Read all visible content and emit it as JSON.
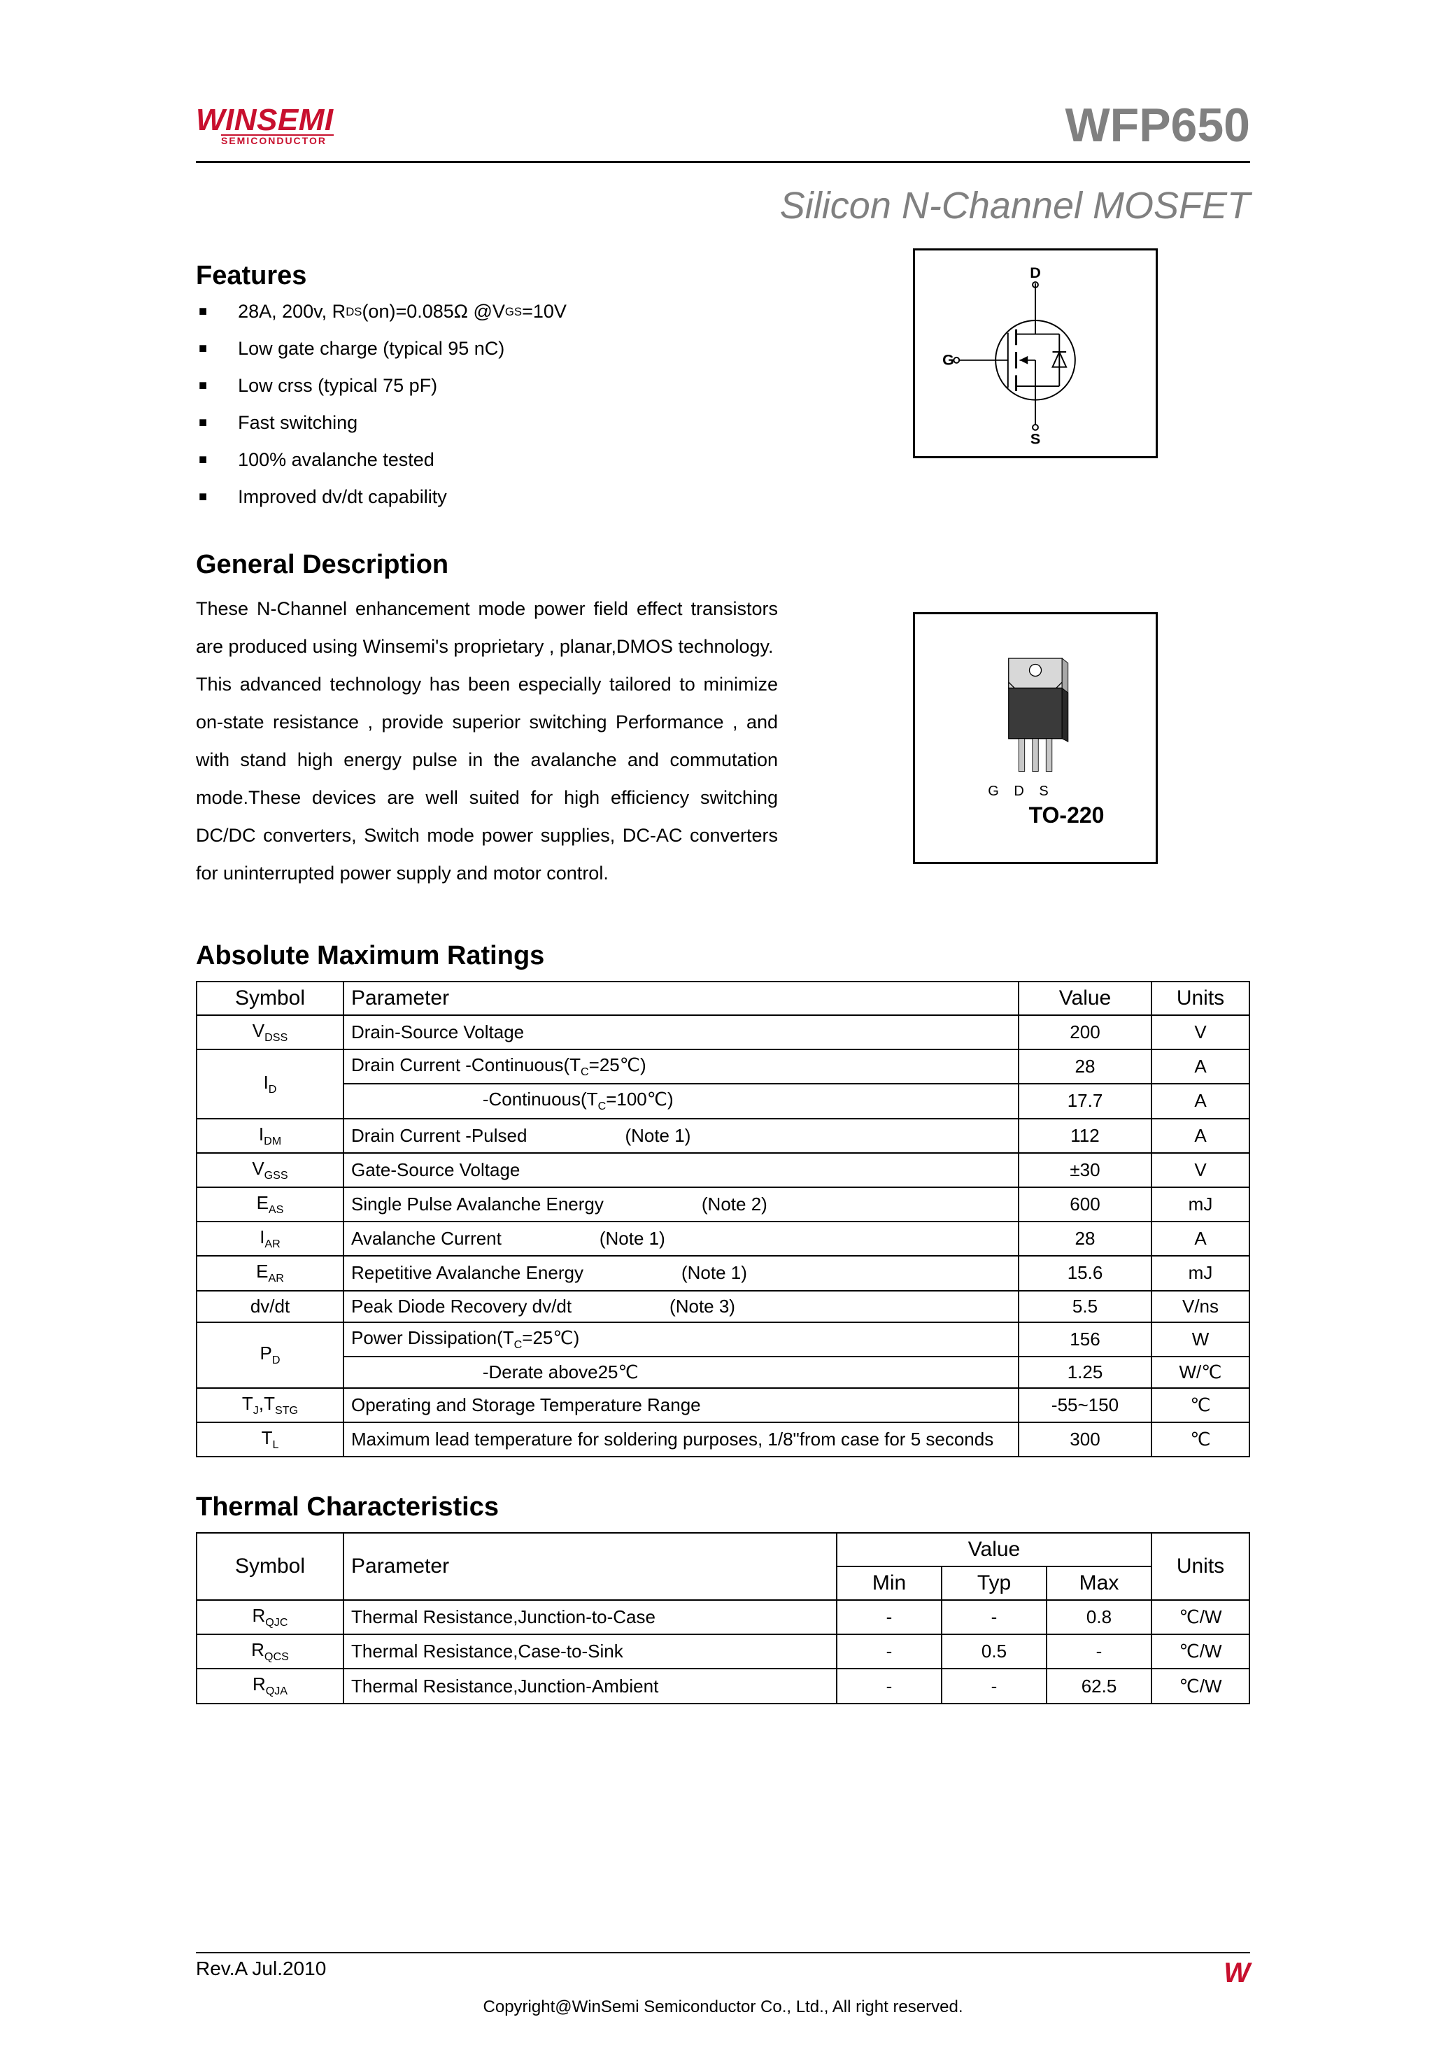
{
  "logo": {
    "main": "WINSEMI",
    "sub": "SEMICONDUCTOR"
  },
  "part_number": "WFP650",
  "subtitle": "Silicon N-Channel MOSFET",
  "features": {
    "heading": "Features",
    "items": [
      "28A, 200v, R<sub>DS</sub>(on)=0.085Ω @V<sub>GS</sub>=10V",
      "Low gate charge (typical 95 nC)",
      "Low crss (typical 75 pF)",
      "Fast switching",
      "100% avalanche tested",
      "Improved dv/dt capability"
    ]
  },
  "description": {
    "heading": "General Description",
    "body": "These N-Channel enhancement   mode power field effect transistors are produced   using   Winsemi's   proprietary , planar,DMOS technology.\nThis   advanced technology has been especially tailored to minimize on-state resistance ,   provide superior switching Performance , and   with stand   high energy pulse in   the avalanche and commutation mode.These devices are well suited for high efficiency   switching   DC/DC   converters, Switch mode   power supplies,   DC-AC   converters   for uninterrupted power supply and motor control."
  },
  "schematic": {
    "pins": {
      "d": "D",
      "g": "G",
      "s": "S"
    }
  },
  "package": {
    "pins_label": "G D S",
    "name": "TO-220"
  },
  "amr": {
    "heading": "Absolute Maximum Ratings",
    "headers": {
      "symbol": "Symbol",
      "parameter": "Parameter",
      "value": "Value",
      "units": "Units"
    },
    "rows": [
      {
        "symbol": "V<sub>DSS</sub>",
        "parameter": "Drain-Source Voltage",
        "note": "",
        "value": "200",
        "units": "V"
      },
      {
        "symbol": "I<sub>D</sub>",
        "parameter": "Drain Current -Continuous(T<sub>C</sub>=25℃)",
        "note": "",
        "value": "28",
        "units": "A",
        "rowspan_symbol": 2
      },
      {
        "symbol": "",
        "parameter": "                          -Continuous(T<sub>C</sub>=100℃)",
        "note": "",
        "value": "17.7",
        "units": "A"
      },
      {
        "symbol": "I<sub>DM</sub>",
        "parameter": "Drain Current -Pulsed",
        "note": "(Note 1)",
        "value": "112",
        "units": "A"
      },
      {
        "symbol": "V<sub>GSS</sub>",
        "parameter": "Gate-Source Voltage",
        "note": "",
        "value": "±30",
        "units": "V"
      },
      {
        "symbol": "E<sub>AS</sub>",
        "parameter": "Single Pulse Avalanche Energy",
        "note": "(Note 2)",
        "value": "600",
        "units": "mJ"
      },
      {
        "symbol": "I<sub>AR</sub>",
        "parameter": "Avalanche Current",
        "note": "(Note 1)",
        "value": "28",
        "units": "A"
      },
      {
        "symbol": "E<sub>AR</sub>",
        "parameter": "Repetitive Avalanche Energy",
        "note": "(Note 1)",
        "value": "15.6",
        "units": "mJ"
      },
      {
        "symbol": "dv/dt",
        "parameter": "Peak Diode Recovery dv/dt",
        "note": "(Note 3)",
        "value": "5.5",
        "units": "V/ns"
      },
      {
        "symbol": "P<sub>D</sub>",
        "parameter": "Power Dissipation(T<sub>C</sub>=25℃)",
        "note": "",
        "value": "156",
        "units": "W",
        "rowspan_symbol": 2
      },
      {
        "symbol": "",
        "parameter": "                          -Derate above25℃",
        "note": "",
        "value": "1.25",
        "units": "W/℃"
      },
      {
        "symbol": "T<sub>J</sub>,T<sub>STG</sub>",
        "parameter": "Operating and Storage Temperature Range",
        "note": "",
        "value": "-55~150",
        "units": "℃"
      },
      {
        "symbol": "T<sub>L</sub>",
        "parameter": "Maximum lead temperature for soldering purposes, 1/8\"from case for 5 seconds",
        "note": "",
        "value": "300",
        "units": "℃"
      }
    ]
  },
  "thermal": {
    "heading": "Thermal Characteristics",
    "headers": {
      "symbol": "Symbol",
      "parameter": "Parameter",
      "value": "Value",
      "min": "Min",
      "typ": "Typ",
      "max": "Max",
      "units": "Units"
    },
    "rows": [
      {
        "symbol": "R<sub>QJC</sub>",
        "parameter": "Thermal Resistance,Junction-to-Case",
        "min": "-",
        "typ": "-",
        "max": "0.8",
        "units": "℃/W"
      },
      {
        "symbol": "R<sub>QCS</sub>",
        "parameter": "Thermal Resistance,Case-to-Sink",
        "min": "-",
        "typ": "0.5",
        "max": "-",
        "units": "℃/W"
      },
      {
        "symbol": "R<sub>QJA</sub>",
        "parameter": "Thermal Resistance,Junction-Ambient",
        "min": "-",
        "typ": "-",
        "max": "62.5",
        "units": "℃/W"
      }
    ]
  },
  "footer": {
    "rev": "Rev.A Jul.2010",
    "mark": "W",
    "copyright": "Copyright@WinSemi Semiconductor Co., Ltd., All right reserved."
  },
  "colors": {
    "brand": "#c8102e",
    "gray": "#808080",
    "border": "#000000",
    "bg": "#ffffff"
  }
}
